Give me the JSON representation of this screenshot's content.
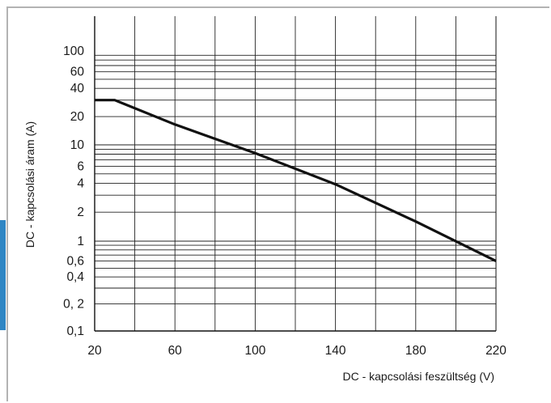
{
  "chart_data": {
    "type": "line",
    "xlabel": "DC -  kapcsolási feszültség (V)",
    "ylabel": "DC -  kapcsolási áram (A)",
    "xlim": [
      20,
      220
    ],
    "ylim": [
      0.1,
      100
    ],
    "y_scale": "log",
    "grid": true,
    "x_ticks": [
      {
        "value": 20,
        "label": "20"
      },
      {
        "value": 60,
        "label": "60"
      },
      {
        "value": 100,
        "label": "100"
      },
      {
        "value": 140,
        "label": "140"
      },
      {
        "value": 180,
        "label": "180"
      },
      {
        "value": 220,
        "label": "220"
      }
    ],
    "y_ticks": [
      {
        "value": 100,
        "label": "100"
      },
      {
        "value": 60,
        "label": "60"
      },
      {
        "value": 40,
        "label": "40"
      },
      {
        "value": 20,
        "label": "20"
      },
      {
        "value": 10,
        "label": "10"
      },
      {
        "value": 6,
        "label": "6"
      },
      {
        "value": 4,
        "label": "4"
      },
      {
        "value": 2,
        "label": "2"
      },
      {
        "value": 1,
        "label": "1"
      },
      {
        "value": 0.6,
        "label": "0,6"
      },
      {
        "value": 0.4,
        "label": "0,4"
      },
      {
        "value": 0.2,
        "label": "0, 2"
      },
      {
        "value": 0.1,
        "label": "0,1"
      }
    ],
    "series": [
      {
        "x": [
          20,
          30,
          60,
          100,
          140,
          180,
          220
        ],
        "y": [
          30,
          30,
          16.5,
          8.2,
          3.9,
          1.6,
          0.6
        ]
      }
    ]
  }
}
